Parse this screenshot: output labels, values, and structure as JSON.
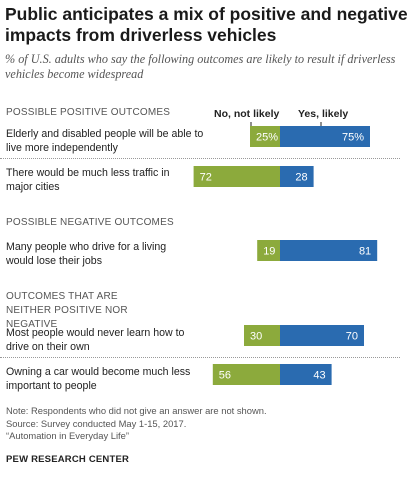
{
  "title": "Public anticipates a mix of positive and negative impacts from driverless vehicles",
  "subtitle": "% of U.S. adults who say the following outcomes are likely to result if driverless vehicles become widespread",
  "legend": {
    "no": "No, not likely",
    "yes": "Yes, likely"
  },
  "colors": {
    "no": "#8caa3c",
    "yes": "#2a6bb0",
    "divider": "#999999",
    "header": "#555555"
  },
  "sections": [
    {
      "header": "POSSIBLE POSITIVE OUTCOMES"
    },
    {
      "header": "POSSIBLE NEGATIVE OUTCOMES"
    },
    {
      "header": "OUTCOMES THAT ARE NEITHER POSITIVE NOR NEGATIVE"
    }
  ],
  "chart_data": {
    "type": "bar",
    "orientation": "horizontal",
    "stacked": "diverging",
    "categories": [
      "Elderly and disabled people will be able to live more independently",
      "There would be much less traffic in major cities",
      "Many people who drive for a living would lose their jobs",
      "Most people would never learn how to drive on their own",
      "Owning a car would become much less important to people"
    ],
    "category_sections": [
      "POSSIBLE POSITIVE OUTCOMES",
      "POSSIBLE POSITIVE OUTCOMES",
      "POSSIBLE NEGATIVE OUTCOMES",
      "OUTCOMES THAT ARE NEITHER POSITIVE NOR NEGATIVE",
      "OUTCOMES THAT ARE NEITHER POSITIVE NOR NEGATIVE"
    ],
    "series": [
      {
        "name": "No, not likely",
        "values": [
          25,
          72,
          19,
          30,
          56
        ],
        "labels": [
          "25%",
          "72",
          "19",
          "30",
          "56"
        ]
      },
      {
        "name": "Yes, likely",
        "values": [
          75,
          28,
          81,
          70,
          43
        ],
        "labels": [
          "75%",
          "28",
          "81",
          "70",
          "43"
        ]
      }
    ]
  },
  "notes": {
    "line1": "Note: Respondents who did not give an answer are not shown.",
    "line2": "Source: Survey conducted May 1-15, 2017.",
    "line3": "“Automation in Everyday Life”",
    "org": "PEW RESEARCH CENTER"
  }
}
